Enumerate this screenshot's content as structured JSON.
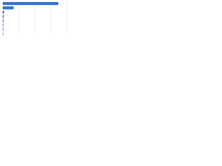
{
  "chart_data": {
    "type": "bar",
    "orientation": "horizontal",
    "categories": [
      null,
      null,
      null,
      null,
      null,
      null,
      null,
      null
    ],
    "values": [
      87,
      17,
      2,
      1.5,
      1.2,
      1,
      0.8,
      0.6
    ],
    "color": "#2e6fdb",
    "xlim": [
      0,
      100
    ],
    "xticks": [
      0,
      25,
      50,
      75,
      100
    ],
    "grid": true
  }
}
